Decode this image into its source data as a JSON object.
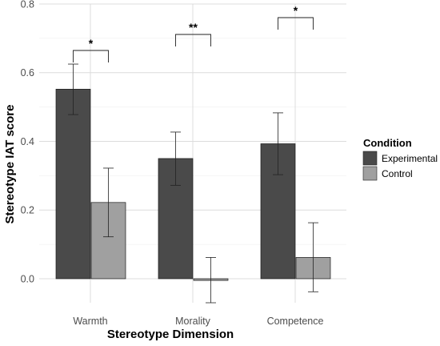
{
  "chart_data": {
    "type": "bar",
    "title": "",
    "xlabel": "Stereotype Dimension",
    "ylabel": "Stereotype IAT score",
    "categories": [
      "Warmth",
      "Morality",
      "Competence"
    ],
    "ylim": [
      -0.07,
      0.8
    ],
    "yticks": [
      "0.0",
      "0.2",
      "0.4",
      "0.6",
      "0.8"
    ],
    "ytick_values": [
      0.0,
      0.2,
      0.4,
      0.6,
      0.8
    ],
    "grid": true,
    "legend": {
      "title": "Condition",
      "placement": "right",
      "entries": [
        "Experimental",
        "Control"
      ]
    },
    "series": [
      {
        "name": "Experimental",
        "color": "#4a4a4a",
        "values": [
          0.552,
          0.35,
          0.393
        ],
        "error_low": [
          0.478,
          0.272,
          0.303
        ],
        "error_high": [
          0.625,
          0.427,
          0.483
        ]
      },
      {
        "name": "Control",
        "color": "#a0a0a0",
        "values": [
          0.222,
          -0.005,
          0.062
        ],
        "error_low": [
          0.122,
          -0.07,
          -0.038
        ],
        "error_high": [
          0.322,
          0.062,
          0.163
        ]
      }
    ],
    "annotations": [
      {
        "category_index": 0,
        "label": "*"
      },
      {
        "category_index": 1,
        "label": "**"
      },
      {
        "category_index": 2,
        "label": "*"
      }
    ]
  }
}
